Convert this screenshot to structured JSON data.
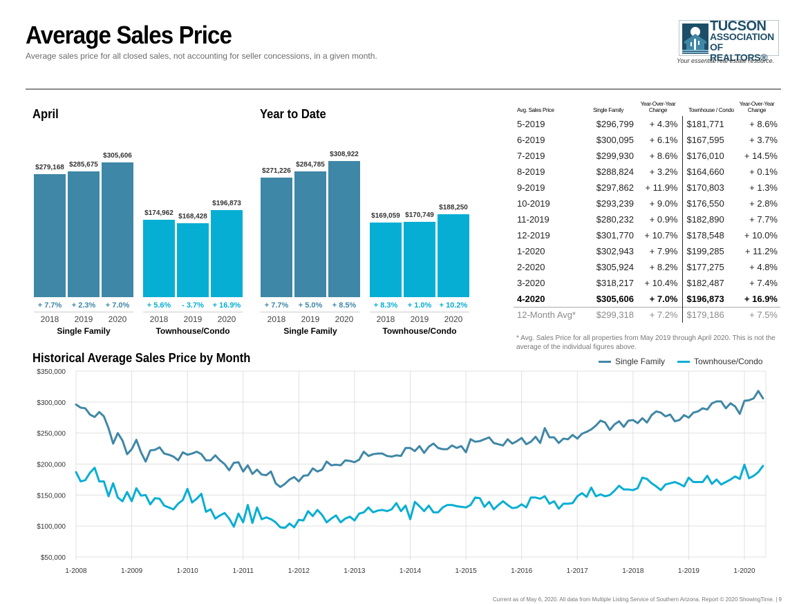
{
  "header": {
    "title": "Average Sales Price",
    "subtitle": "Average sales price for all closed sales, not accounting for seller concessions, in a given month."
  },
  "logo": {
    "line1": "TUCSON",
    "line2": "ASSOCIATION",
    "line3": "OF REALTORS®",
    "tagline": "Your essential real estate resource."
  },
  "colors": {
    "single_family": "#3f87a6",
    "townhouse": "#07aed3",
    "table_divider": "#222222"
  },
  "chart_data": [
    {
      "type": "bar",
      "title": "April",
      "groups": [
        {
          "name": "Single Family",
          "categories": [
            "2018",
            "2019",
            "2020"
          ],
          "values": [
            279168,
            285675,
            305606
          ],
          "value_labels": [
            "$279,168",
            "$285,675",
            "$305,606"
          ],
          "changes": [
            "+ 7.7%",
            "+ 2.3%",
            "+ 7.0%"
          ]
        },
        {
          "name": "Townhouse/Condo",
          "categories": [
            "2018",
            "2019",
            "2020"
          ],
          "values": [
            174962,
            168428,
            196873
          ],
          "value_labels": [
            "$174,962",
            "$168,428",
            "$196,873"
          ],
          "changes": [
            "+ 5.6%",
            "- 3.7%",
            "+ 16.9%"
          ]
        }
      ]
    },
    {
      "type": "bar",
      "title": "Year to Date",
      "groups": [
        {
          "name": "Single Family",
          "categories": [
            "2018",
            "2019",
            "2020"
          ],
          "values": [
            271226,
            284785,
            308922
          ],
          "value_labels": [
            "$271,226",
            "$284,785",
            "$308,922"
          ],
          "changes": [
            "+ 7.7%",
            "+ 5.0%",
            "+ 8.5%"
          ]
        },
        {
          "name": "Townhouse/Condo",
          "categories": [
            "2018",
            "2019",
            "2020"
          ],
          "values": [
            169059,
            170749,
            188250
          ],
          "value_labels": [
            "$169,059",
            "$170,749",
            "$188,250"
          ],
          "changes": [
            "+ 8.3%",
            "+ 1.0%",
            "+ 10.2%"
          ]
        }
      ]
    },
    {
      "type": "line",
      "title": "Historical Average Sales Price by Month",
      "xlabel": "",
      "ylabel": "",
      "x_start": "1-2008",
      "x_end": "4-2020",
      "x_ticks": [
        "1-2008",
        "1-2009",
        "1-2010",
        "1-2011",
        "1-2012",
        "1-2013",
        "1-2014",
        "1-2015",
        "1-2016",
        "1-2017",
        "1-2018",
        "1-2019",
        "1-2020"
      ],
      "y_ticks": [
        "$50,000",
        "$100,000",
        "$150,000",
        "$200,000",
        "$250,000",
        "$300,000",
        "$350,000"
      ],
      "ylim": [
        50000,
        350000
      ],
      "grid": true,
      "legend": "top-right",
      "series": [
        {
          "name": "Single Family",
          "values": [
            296000,
            291000,
            290000,
            280000,
            276000,
            284000,
            277000,
            258000,
            233000,
            250000,
            238000,
            216000,
            224000,
            239000,
            219000,
            204000,
            222000,
            223000,
            227000,
            217000,
            215000,
            212000,
            206000,
            219000,
            215000,
            217000,
            220000,
            216000,
            206000,
            206000,
            214000,
            206000,
            200000,
            190000,
            202000,
            203000,
            188000,
            198000,
            184000,
            191000,
            183000,
            182000,
            188000,
            169000,
            163000,
            168000,
            175000,
            179000,
            172000,
            181000,
            182000,
            193000,
            188000,
            191000,
            204000,
            198000,
            199000,
            198000,
            206000,
            205000,
            203000,
            207000,
            220000,
            213000,
            216000,
            217000,
            217000,
            213000,
            212000,
            214000,
            213000,
            226000,
            226000,
            221000,
            229000,
            218000,
            228000,
            233000,
            226000,
            224000,
            224000,
            230000,
            226000,
            229000,
            219000,
            240000,
            236000,
            237000,
            240000,
            243000,
            234000,
            232000,
            230000,
            240000,
            233000,
            237000,
            242000,
            232000,
            236000,
            244000,
            234000,
            258000,
            243000,
            243000,
            234000,
            241000,
            240000,
            247000,
            241000,
            249000,
            252000,
            256000,
            262000,
            270000,
            267000,
            255000,
            264000,
            269000,
            260000,
            270000,
            271000,
            266000,
            274000,
            267000,
            279000,
            285000,
            283000,
            277000,
            280000,
            269000,
            271000,
            279000,
            275000,
            283000,
            285000,
            290000,
            288000,
            298000,
            301000,
            301000,
            290000,
            298000,
            293000,
            281000,
            302000,
            303000,
            306000,
            318000,
            306000
          ]
        },
        {
          "name": "Townhouse/Condo",
          "values": [
            187000,
            172000,
            174000,
            186000,
            194000,
            172000,
            172000,
            148000,
            169000,
            146000,
            140000,
            155000,
            140000,
            161000,
            149000,
            150000,
            135000,
            145000,
            144000,
            133000,
            130000,
            127000,
            136000,
            142000,
            160000,
            138000,
            144000,
            152000,
            123000,
            127000,
            112000,
            117000,
            121000,
            112000,
            99000,
            120000,
            106000,
            134000,
            105000,
            130000,
            111000,
            114000,
            111000,
            106000,
            98000,
            97000,
            104000,
            98000,
            110000,
            109000,
            124000,
            116000,
            126000,
            118000,
            106000,
            112000,
            117000,
            106000,
            112000,
            115000,
            109000,
            120000,
            122000,
            130000,
            122000,
            125000,
            126000,
            124000,
            127000,
            137000,
            124000,
            133000,
            111000,
            139000,
            132000,
            124000,
            133000,
            122000,
            122000,
            130000,
            134000,
            134000,
            132000,
            131000,
            130000,
            134000,
            146000,
            145000,
            131000,
            139000,
            127000,
            134000,
            140000,
            134000,
            129000,
            130000,
            135000,
            130000,
            146000,
            146000,
            144000,
            148000,
            136000,
            140000,
            128000,
            136000,
            136000,
            137000,
            148000,
            153000,
            147000,
            162000,
            148000,
            151000,
            148000,
            150000,
            157000,
            165000,
            159000,
            159000,
            158000,
            161000,
            178000,
            176000,
            169000,
            164000,
            158000,
            167000,
            169000,
            171000,
            168000,
            164000,
            178000,
            171000,
            171000,
            171000,
            181000,
            168000,
            175000,
            167000,
            171000,
            175000,
            180000,
            176000,
            199000,
            177000,
            181000,
            187000,
            197000
          ]
        }
      ]
    }
  ],
  "table": {
    "headers": [
      "Avg. Sales Price",
      "Single Family",
      "Year-Over-Year Change",
      "Townhouse / Condo",
      "Year-Over-Year Change"
    ],
    "rows": [
      [
        "5-2019",
        "$296,799",
        "+ 4.3%",
        "$181,771",
        "+ 8.6%"
      ],
      [
        "6-2019",
        "$300,095",
        "+ 6.1%",
        "$167,595",
        "+ 3.7%"
      ],
      [
        "7-2019",
        "$299,930",
        "+ 8.6%",
        "$176,010",
        "+ 14.5%"
      ],
      [
        "8-2019",
        "$288,824",
        "+ 3.2%",
        "$164,660",
        "+ 0.1%"
      ],
      [
        "9-2019",
        "$297,862",
        "+ 11.9%",
        "$170,803",
        "+ 1.3%"
      ],
      [
        "10-2019",
        "$293,239",
        "+ 9.0%",
        "$176,550",
        "+ 2.8%"
      ],
      [
        "11-2019",
        "$280,232",
        "+ 0.9%",
        "$182,890",
        "+ 7.7%"
      ],
      [
        "12-2019",
        "$301,770",
        "+ 10.7%",
        "$178,548",
        "+ 10.0%"
      ],
      [
        "1-2020",
        "$302,943",
        "+ 7.9%",
        "$199,285",
        "+ 11.2%"
      ],
      [
        "2-2020",
        "$305,924",
        "+ 8.2%",
        "$177,275",
        "+ 4.8%"
      ],
      [
        "3-2020",
        "$318,217",
        "+ 10.4%",
        "$182,487",
        "+ 7.4%"
      ]
    ],
    "current_row": [
      "4-2020",
      "$305,606",
      "+ 7.0%",
      "$196,873",
      "+ 16.9%"
    ],
    "avg_row": [
      "12-Month Avg*",
      "$299,318",
      "+ 7.2%",
      "$179,186",
      "+ 7.5%"
    ],
    "footnote": "* Avg. Sales Price for all properties from May 2019 through April 2020. This is not the average of the individual figures above."
  },
  "footer": "Current as of May 6, 2020. All data from Multiple Listing Service of Southern Arizona. Report © 2020 ShowingTime.  |  9"
}
